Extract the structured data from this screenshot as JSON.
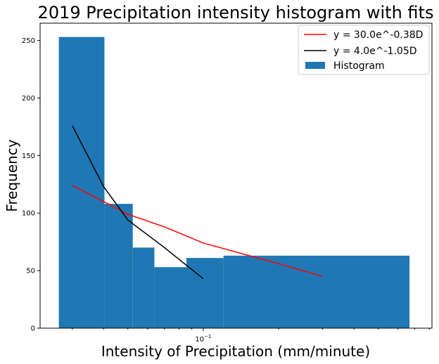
{
  "chart_data": {
    "type": "bar",
    "title": "2019 Precipitation intensity histogram with fits",
    "xlabel": "Intensity of Precipitation (mm/minute)",
    "ylabel": "Frequency",
    "x_scale": "log",
    "ylim": [
      0,
      265
    ],
    "xlim": [
      0.0223,
      0.82
    ],
    "x_ticks": [
      {
        "value": 0.1,
        "label": "10^-1"
      }
    ],
    "y_ticks": [
      0,
      50,
      100,
      150,
      200,
      250
    ],
    "grid": false,
    "legend_position": "top-right",
    "histogram": {
      "name": "Histogram",
      "color": "#1f77b4",
      "bin_edges": [
        0.0265,
        0.0403,
        0.0523,
        0.0638,
        0.0857,
        0.1205,
        0.667
      ],
      "counts": [
        253,
        108,
        70,
        53,
        61,
        63
      ]
    },
    "series": [
      {
        "name": "y = 30.0e^-0.38D",
        "color": "#ff0000",
        "x": [
          0.03,
          0.04,
          0.05,
          0.07,
          0.1,
          0.2,
          0.3
        ],
        "y": [
          124,
          110,
          99,
          88,
          74,
          56,
          45
        ]
      },
      {
        "name": "y = 4.0e^-1.05D",
        "color": "#000000",
        "x": [
          0.03,
          0.04,
          0.05,
          0.07,
          0.1
        ],
        "y": [
          176,
          123,
          94,
          70,
          43
        ]
      }
    ]
  }
}
